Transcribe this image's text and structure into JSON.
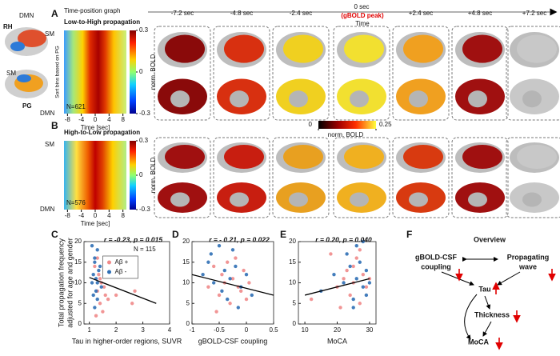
{
  "panel_labels": [
    "A",
    "B",
    "C",
    "D",
    "E",
    "F"
  ],
  "left_icon": {
    "labels": [
      "DMN",
      "RH",
      "SM",
      "PG"
    ]
  },
  "time_header": {
    "times": [
      "-7.2 sec",
      "-4.8 sec",
      "-2.4 sec",
      "0 sec",
      "+2.4 sec",
      "+4.8 sec",
      "+7.2 sec"
    ],
    "peak": "(gBOLD peak)",
    "axis": "Time"
  },
  "heatmaps": [
    {
      "title": "Time-position graph",
      "subtitle": "Low-to-High propagation",
      "top_label": "SM",
      "bottom_label": "DMN",
      "y_label": "Sort bins based on PG",
      "n_label": "N=621",
      "x_label": "Time [sec]",
      "xlim": [
        -9,
        9
      ],
      "xticks": [
        -8,
        -4,
        0,
        4,
        8
      ],
      "colorbar": {
        "label": "norm. BOLD",
        "lim": [
          -0.3,
          0.3
        ],
        "ticks": [
          0.3,
          0,
          -0.3
        ]
      }
    },
    {
      "subtitle": "High-to-Low propagation",
      "top_label": "SM",
      "bottom_label": "DMN",
      "n_label": "N=576",
      "x_label": "Time [sec]",
      "xlim": [
        -9,
        9
      ],
      "xticks": [
        -8,
        -4,
        0,
        4,
        8
      ],
      "colorbar": {
        "label": "norm. BOLD",
        "lim": [
          -0.3,
          0.3
        ],
        "ticks": [
          0.3,
          0,
          -0.3
        ]
      }
    }
  ],
  "brain_colorbar": {
    "label": "norm. BOLD",
    "lim": [
      0,
      0.25
    ],
    "ticks": [
      0,
      0.25
    ]
  },
  "chart_data": [
    {
      "type": "scatter",
      "annotation": "r = -0.23, p = 0.015",
      "n_label": "N = 115",
      "y_label": [
        "Total propagation frequency",
        "adjusted for age and gender"
      ],
      "x_label": "Tau in higher-order regions, SUVR",
      "xlim": [
        0.8,
        4
      ],
      "xticks": [
        1,
        2,
        3,
        4
      ],
      "ylim": [
        0,
        20
      ],
      "yticks": [
        0,
        5,
        10,
        15,
        20
      ],
      "legend": "upper center",
      "series": [
        {
          "name": "Aβ +",
          "color": "#f08a8a",
          "x": [
            1.2,
            1.3,
            1.35,
            1.4,
            1.45,
            1.5,
            1.55,
            1.6,
            1.3,
            1.4,
            1.7,
            2.0,
            2.6,
            2.7,
            1.25
          ],
          "values": [
            14,
            8,
            12,
            5,
            10,
            3,
            9,
            7,
            16,
            11,
            6,
            7,
            5,
            8,
            2
          ]
        },
        {
          "name": "Aβ -",
          "color": "#2f6fb5",
          "x": [
            1.1,
            1.15,
            1.2,
            1.25,
            1.3,
            1.2,
            1.35,
            1.4,
            1.15,
            1.3,
            1.25,
            1.45,
            1.2,
            1.3,
            1.1
          ],
          "values": [
            19,
            12,
            16,
            8,
            10,
            4,
            13,
            14,
            7,
            18,
            11,
            9,
            15,
            6,
            10
          ]
        }
      ],
      "trend": {
        "color": "#000000",
        "x": [
          1,
          3.5
        ],
        "y": [
          11.3,
          5
        ]
      }
    },
    {
      "type": "scatter",
      "annotation": "r = - 0.21, p = 0.022",
      "x_label": "gBOLD-CSF coupling",
      "xlim": [
        -1,
        0.5
      ],
      "xticks": [
        -1,
        -0.5,
        0,
        0.5
      ],
      "ylim": [
        0,
        20
      ],
      "yticks": [
        0,
        5,
        10,
        15,
        20
      ],
      "series": [
        {
          "color": "#f08a8a",
          "x": [
            -0.7,
            -0.6,
            -0.5,
            -0.45,
            -0.4,
            -0.3,
            -0.25,
            -0.2,
            -0.1,
            -0.05,
            0,
            -0.55,
            -0.35,
            -0.15,
            0.05
          ],
          "values": [
            9,
            14,
            7,
            12,
            10,
            5,
            11,
            16,
            8,
            13,
            6,
            3,
            15,
            9,
            10
          ]
        },
        {
          "color": "#2f6fb5",
          "x": [
            -0.8,
            -0.65,
            -0.6,
            -0.5,
            -0.45,
            -0.4,
            -0.35,
            -0.3,
            -0.2,
            -0.15,
            -0.1,
            0,
            -0.7,
            -0.25,
            0.1
          ],
          "values": [
            12,
            17,
            10,
            19,
            8,
            13,
            6,
            11,
            14,
            4,
            9,
            12,
            15,
            18,
            7
          ]
        }
      ],
      "trend": {
        "color": "#000000",
        "x": [
          -1,
          0.5
        ],
        "y": [
          12,
          7
        ]
      }
    },
    {
      "type": "scatter",
      "annotation": "r = 0.20, p = 0.040",
      "x_label": "MoCA",
      "xlim": [
        8,
        32
      ],
      "xticks": [
        10,
        20,
        30
      ],
      "ylim": [
        0,
        20
      ],
      "yticks": [
        0,
        5,
        10,
        15,
        20
      ],
      "series": [
        {
          "color": "#f08a8a",
          "x": [
            12,
            18,
            20,
            22,
            23,
            24,
            25,
            26,
            27,
            28,
            29,
            25,
            21,
            27,
            30
          ],
          "values": [
            6,
            17,
            9,
            11,
            13,
            7,
            10,
            16,
            5,
            12,
            9,
            14,
            4,
            18,
            11
          ]
        },
        {
          "color": "#2f6fb5",
          "x": [
            15,
            19,
            22,
            24,
            25,
            26,
            26,
            27,
            28,
            28,
            29,
            30,
            23,
            25,
            29
          ],
          "values": [
            8,
            12,
            10,
            14,
            6,
            19,
            11,
            15,
            9,
            20,
            13,
            10,
            17,
            4,
            7
          ]
        }
      ],
      "trend": {
        "color": "#000000",
        "x": [
          10,
          30
        ],
        "y": [
          7,
          11
        ]
      }
    }
  ],
  "overview": {
    "title": "Overview",
    "nodes": [
      [
        "gBOLD-CSF",
        "coupling"
      ],
      [
        "Propagating",
        "wave"
      ],
      [
        "Tau"
      ],
      [
        "Thickness"
      ],
      [
        "MoCA"
      ]
    ]
  }
}
